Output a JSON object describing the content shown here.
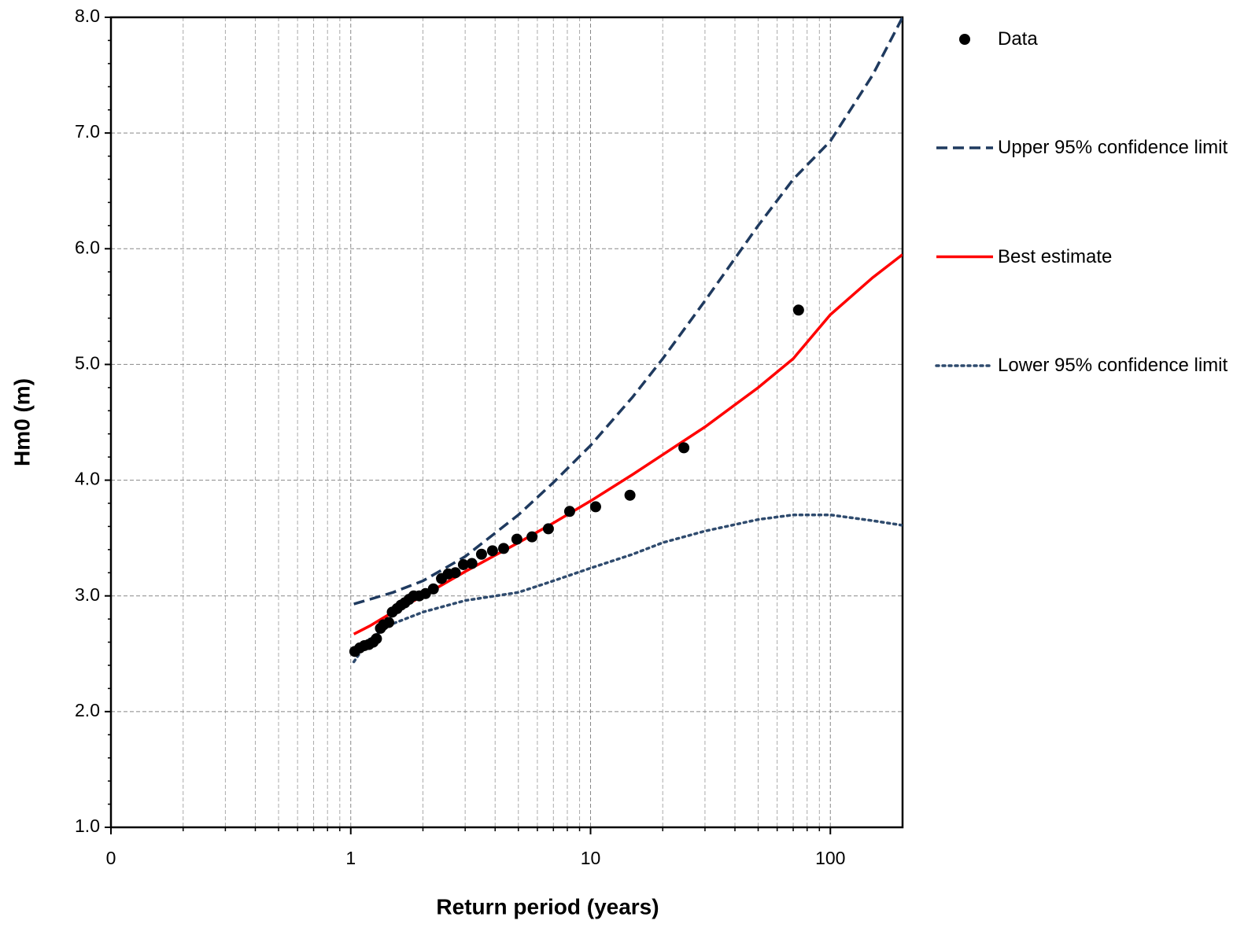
{
  "chart_data": {
    "type": "line",
    "x_label": "Return period (years)",
    "y_label": "Hm0 (m)",
    "xscale": "log",
    "xlim": [
      0.1,
      200
    ],
    "xticks": [
      {
        "value": 0.1,
        "label": "0"
      },
      1,
      10,
      100
    ],
    "ylim": [
      1,
      8
    ],
    "yticks": [
      {
        "value": 1,
        "label": "1.0"
      },
      {
        "value": 2,
        "label": "2.0"
      },
      {
        "value": 3,
        "label": "3.0"
      },
      {
        "value": 4,
        "label": "4.0"
      },
      {
        "value": 5,
        "label": "5.0"
      },
      {
        "value": 6,
        "label": "6.0"
      },
      {
        "value": 7,
        "label": "7.0"
      },
      {
        "value": 8,
        "label": "8.0"
      }
    ],
    "grid": true,
    "legend": "right",
    "series": [
      {
        "name": "Data",
        "type": "scatter",
        "color": "#000000",
        "x": [
          1.04,
          1.09,
          1.14,
          1.19,
          1.24,
          1.28,
          1.33,
          1.37,
          1.44,
          1.49,
          1.56,
          1.62,
          1.68,
          1.75,
          1.83,
          1.93,
          2.05,
          2.21,
          2.39,
          2.55,
          2.73,
          2.95,
          3.2,
          3.51,
          3.9,
          4.34,
          4.93,
          5.7,
          6.67,
          8.18,
          10.5,
          14.6,
          24.5,
          73.7
        ],
        "values": [
          2.52,
          2.55,
          2.57,
          2.58,
          2.6,
          2.63,
          2.72,
          2.75,
          2.77,
          2.86,
          2.89,
          2.92,
          2.94,
          2.97,
          3.0,
          3.0,
          3.02,
          3.06,
          3.15,
          3.19,
          3.2,
          3.27,
          3.28,
          3.36,
          3.39,
          3.41,
          3.49,
          3.51,
          3.58,
          3.73,
          3.77,
          3.87,
          4.28,
          5.47
        ]
      },
      {
        "name": "Upper 95% confidence limit",
        "type": "line",
        "color": "#1f3a5f",
        "dash": "dashed",
        "x": [
          1.03,
          1.2,
          1.5,
          2,
          3,
          5,
          7,
          10,
          15,
          20,
          30,
          50,
          70,
          100,
          150,
          200
        ],
        "values": [
          2.93,
          2.97,
          3.03,
          3.13,
          3.34,
          3.7,
          3.98,
          4.3,
          4.72,
          5.05,
          5.55,
          6.2,
          6.6,
          6.93,
          7.5,
          8.0
        ]
      },
      {
        "name": "Best estimate",
        "type": "line",
        "color": "#ff0000",
        "dash": "solid",
        "x": [
          1.03,
          1.2,
          1.5,
          2,
          3,
          5,
          7,
          10,
          15,
          20,
          30,
          50,
          70,
          100,
          150,
          200
        ],
        "values": [
          2.67,
          2.74,
          2.86,
          3.0,
          3.21,
          3.46,
          3.63,
          3.82,
          4.05,
          4.22,
          4.46,
          4.8,
          5.05,
          5.43,
          5.75,
          5.95
        ]
      },
      {
        "name": "Lower 95% confidence limit",
        "type": "line",
        "color": "#2f4b6e",
        "dash": "dotted",
        "x": [
          1.03,
          1.2,
          1.5,
          2,
          3,
          5,
          7,
          10,
          15,
          20,
          30,
          50,
          70,
          100,
          150,
          200
        ],
        "values": [
          2.43,
          2.63,
          2.76,
          2.86,
          2.96,
          3.03,
          3.13,
          3.24,
          3.36,
          3.46,
          3.56,
          3.66,
          3.7,
          3.7,
          3.65,
          3.61
        ]
      }
    ]
  }
}
